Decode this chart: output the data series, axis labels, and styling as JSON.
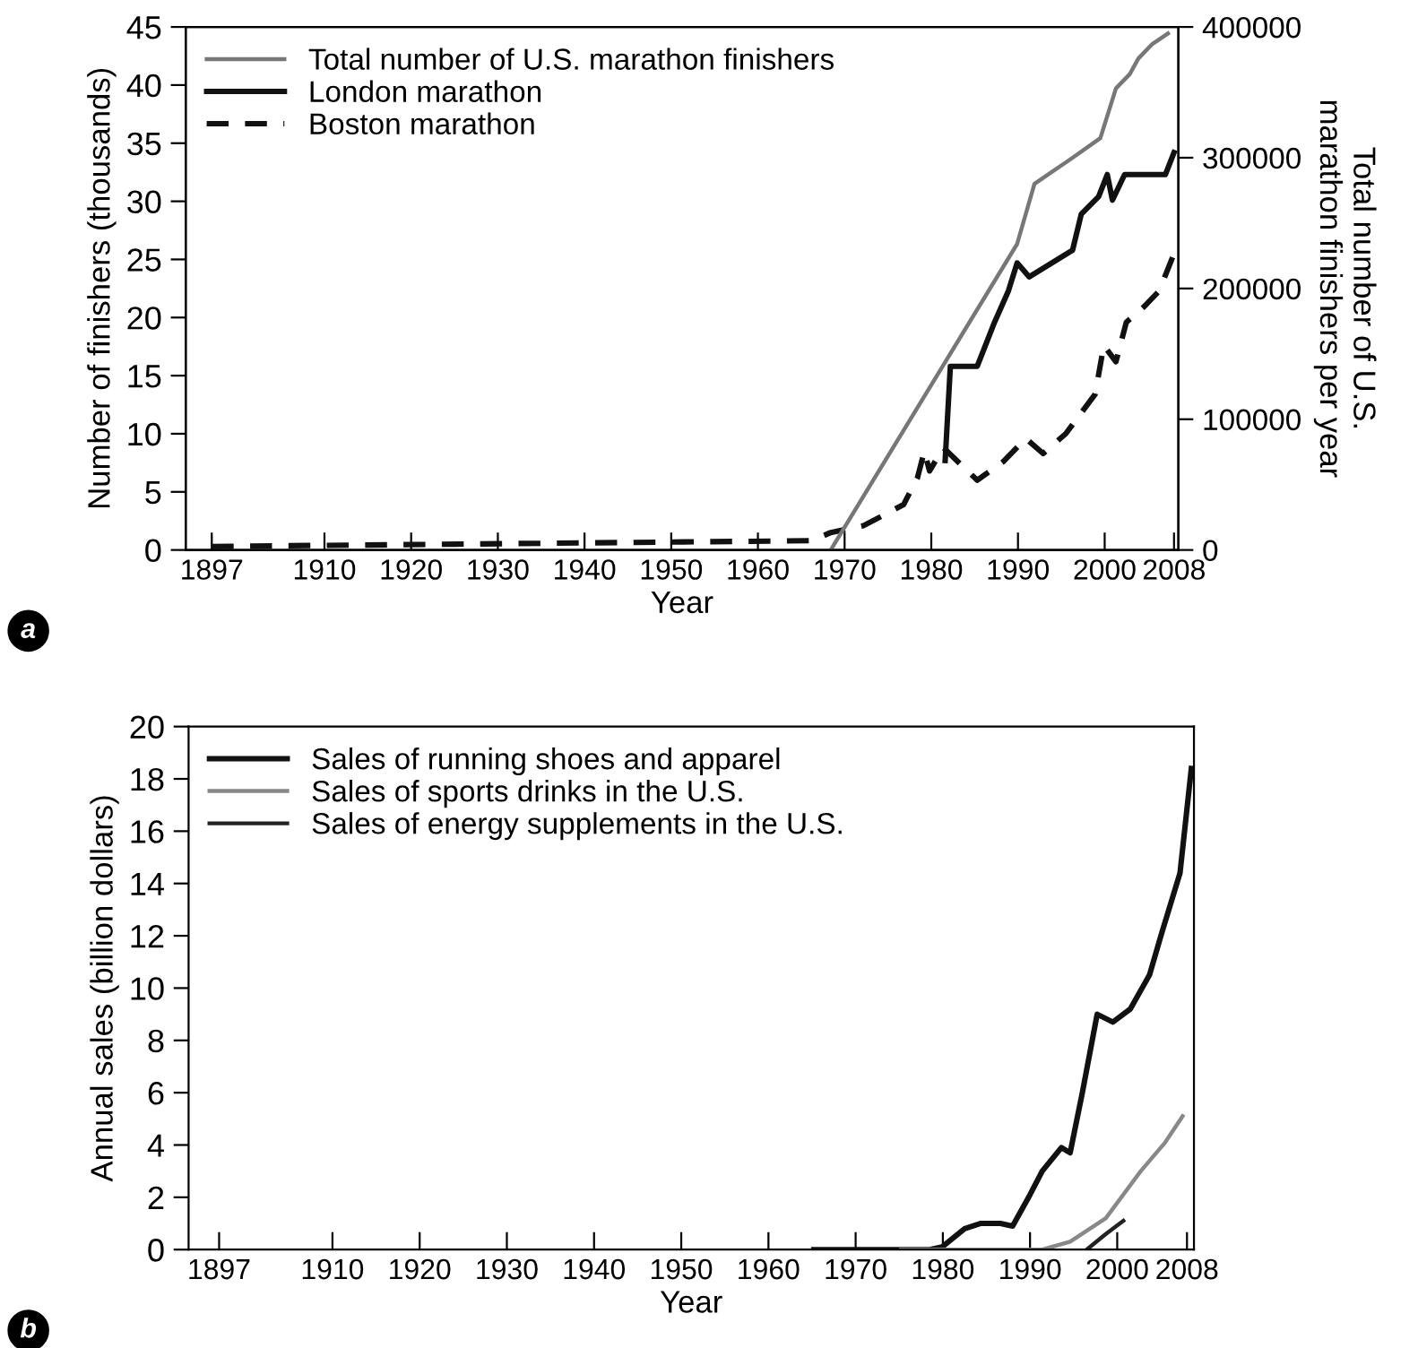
{
  "chart_data": [
    {
      "type": "line",
      "xlabel": "Year",
      "ylabel": "Number of finishers (thousands)",
      "y2label": "Total number of U.S.\nmarathon finishers per year",
      "annotations": [
        "a"
      ],
      "xlim": [
        1894,
        2008.5
      ],
      "xticks": [
        1897,
        1910,
        1920,
        1930,
        1940,
        1950,
        1960,
        1970,
        1980,
        1990,
        2000,
        2008
      ],
      "ylim": [
        0,
        45
      ],
      "yticks": [
        0,
        5,
        10,
        15,
        20,
        25,
        30,
        35,
        40,
        45
      ],
      "y2lim": [
        0,
        400000
      ],
      "y2ticks": [
        0,
        100000,
        200000,
        300000,
        400000
      ],
      "legend": "top left",
      "grid": false,
      "series": [
        {
          "name": "Total number of U.S. marathon finishers",
          "color": "#777777",
          "axis": "y2",
          "line_style": "solid",
          "x": [
            1968.4,
            1989.9,
            1991.9,
            1996.3,
            1999.5,
            2001.3,
            2002.9,
            2003.9,
            2005.5,
            2007.3
          ],
          "values": [
            0,
            234000,
            280000,
            300000,
            315000,
            353000,
            364000,
            376000,
            387000,
            395000
          ]
        },
        {
          "name": "London marathon",
          "color": "#111111",
          "line_style": "solid",
          "x": [
            1981.6,
            1982.2,
            1985.3,
            1987.3,
            1988.9,
            1989.9,
            1991.3,
            1996.3,
            1997.3,
            1999.3,
            2000.3,
            2000.9,
            2002.3,
            2007,
            2008
          ],
          "values": [
            7.7,
            15.8,
            15.8,
            19.6,
            22.3,
            24.7,
            23.5,
            25.8,
            28.9,
            30.4,
            32.3,
            30.1,
            32.3,
            32.3,
            34.2
          ]
        },
        {
          "name": "Boston marathon",
          "color": "#111111",
          "line_style": "dashed",
          "x": [
            1897,
            1966.2,
            1968.4,
            1972.2,
            1976.8,
            1978.4,
            1979.2,
            1979.8,
            1981.4,
            1985.3,
            1988.3,
            1990.9,
            1992.9,
            1995.5,
            1998.9,
            1999.9,
            2001.3,
            2002.5,
            2004.5,
            2006.3,
            2008
          ],
          "values": [
            0.3,
            0.8,
            1.5,
            2.1,
            3.9,
            6.2,
            8.5,
            6.8,
            8.8,
            6.0,
            7.6,
            9.6,
            8.3,
            10.0,
            13.4,
            17.6,
            16.2,
            19.6,
            20.9,
            22.3,
            25.5
          ]
        }
      ]
    },
    {
      "type": "line",
      "xlabel": "Year",
      "ylabel": "Annual sales (billion dollars)",
      "annotations": [
        "b"
      ],
      "xlim": [
        1893.5,
        2008.8
      ],
      "xticks": [
        1897,
        1910,
        1920,
        1930,
        1940,
        1950,
        1960,
        1970,
        1980,
        1990,
        2000,
        2008
      ],
      "ylim": [
        0,
        20
      ],
      "yticks": [
        0,
        2,
        4,
        6,
        8,
        10,
        12,
        14,
        16,
        18,
        20
      ],
      "legend": "top left",
      "grid": false,
      "series": [
        {
          "name": "Sales of running shoes and apparel",
          "color": "#111111",
          "line_style": "solid",
          "x": [
            1965.2,
            1978.5,
            1979.9,
            1982.5,
            1984.3,
            1986.6,
            1988,
            1990,
            1991.4,
            1993.6,
            1994.6,
            1996,
            1997.7,
            1999.5,
            2001.5,
            2003.7,
            2005.1,
            2007.2,
            2008.5
          ],
          "values": [
            0,
            0,
            0.1,
            0.8,
            1.0,
            1.0,
            0.9,
            2.1,
            3.0,
            3.9,
            3.7,
            6.0,
            9.0,
            8.7,
            9.2,
            10.5,
            12.1,
            14.4,
            18.4
          ]
        },
        {
          "name": "Sales of sports drinks in the U.S.",
          "color": "#888888",
          "line_style": "solid",
          "x": [
            1975.2,
            1991.4,
            1994.6,
            1998.7,
            2002.7,
            2005.5,
            2007.5
          ],
          "values": [
            0,
            0,
            0.3,
            1.2,
            3.0,
            4.1,
            5.1
          ]
        },
        {
          "name": "Sales of energy supplements in the U.S.",
          "color": "#222222",
          "line_style": "solid",
          "x": [
            1996.5,
            1998.7,
            2000.7
          ],
          "values": [
            0,
            0.6,
            1.1
          ]
        }
      ]
    }
  ]
}
